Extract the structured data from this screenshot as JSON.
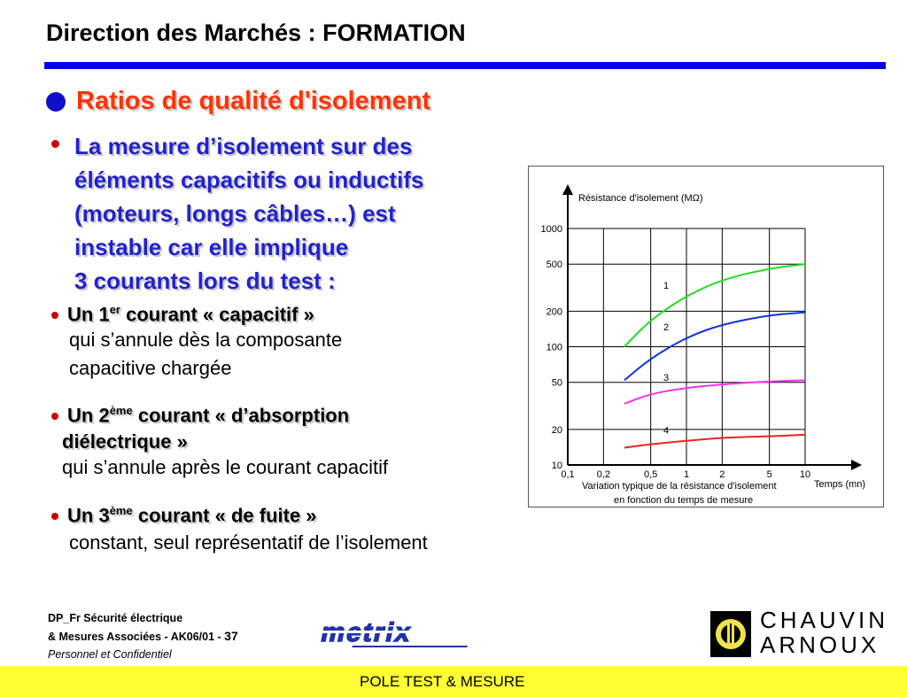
{
  "slide": {
    "title": "Direction des Marchés : FORMATION",
    "heading": "Ratios de qualité d'isolement",
    "intro_lines": [
      "La mesure d’isolement sur des",
      "éléments capacitifs ou inductifs",
      "(moteurs, longs câbles…) est",
      "instable car elle implique",
      "3 courants lors du test :"
    ],
    "items": [
      {
        "pre": "Un 1",
        "sup": "er",
        "post": " courant « capacitif »",
        "lines": [
          "qui s’annule dès la composante",
          "capacitive chargée"
        ]
      },
      {
        "pre": "Un 2",
        "sup": "ème",
        "post": " courant « d’absorption",
        "post2": "diélectrique »",
        "lines": [
          "qui s’annule après le courant capacitif"
        ]
      },
      {
        "pre": "Un 3",
        "sup": "ème",
        "post": " courant « de fuite »",
        "lines": [
          "constant, seul représentatif de l’isolement"
        ]
      }
    ]
  },
  "footer": {
    "line1": "DP_Fr  Sécurité électrique",
    "line2": "& Mesures Associées - AK06/01 - ",
    "page": "37",
    "line3": "Personnel et Confidentiel",
    "brand1": "metrix",
    "brand2_line1": "CHAUVIN",
    "brand2_line2": "ARNOUX",
    "bar_text": "POLE TEST & MESURE"
  },
  "chart_data": {
    "type": "line",
    "ylabel": "Résistance d'isolement (MΩ)",
    "xlabel": "Temps (mn)",
    "caption_line1": "Variation typique de la résistance d'isolement",
    "caption_line2": "en fonction du temps de mesure",
    "x_scale": "log",
    "y_scale": "log",
    "x_ticks": [
      "0,1",
      "0,2",
      "0,5",
      "1",
      "2",
      "5",
      "10"
    ],
    "y_ticks": [
      "10",
      "20",
      "50",
      "100",
      "200",
      "500",
      "1000"
    ],
    "xlim": [
      0.1,
      10
    ],
    "ylim": [
      10,
      1000
    ],
    "grid": true,
    "colors": [
      "#22dd22",
      "#1133dd",
      "#ee33ee",
      "#ee2222"
    ],
    "series": [
      {
        "name": "1",
        "x": [
          0.3,
          0.5,
          1,
          2,
          5,
          10
        ],
        "y": [
          100,
          170,
          270,
          370,
          460,
          500
        ]
      },
      {
        "name": "2",
        "x": [
          0.3,
          0.5,
          1,
          2,
          5,
          10
        ],
        "y": [
          52,
          80,
          120,
          155,
          185,
          195
        ]
      },
      {
        "name": "3",
        "x": [
          0.3,
          0.5,
          1,
          2,
          5,
          10
        ],
        "y": [
          33,
          40,
          45,
          48,
          51,
          52
        ]
      },
      {
        "name": "4",
        "x": [
          0.3,
          0.5,
          1,
          2,
          5,
          10
        ],
        "y": [
          14,
          15,
          16,
          17,
          17.5,
          18
        ]
      }
    ]
  }
}
